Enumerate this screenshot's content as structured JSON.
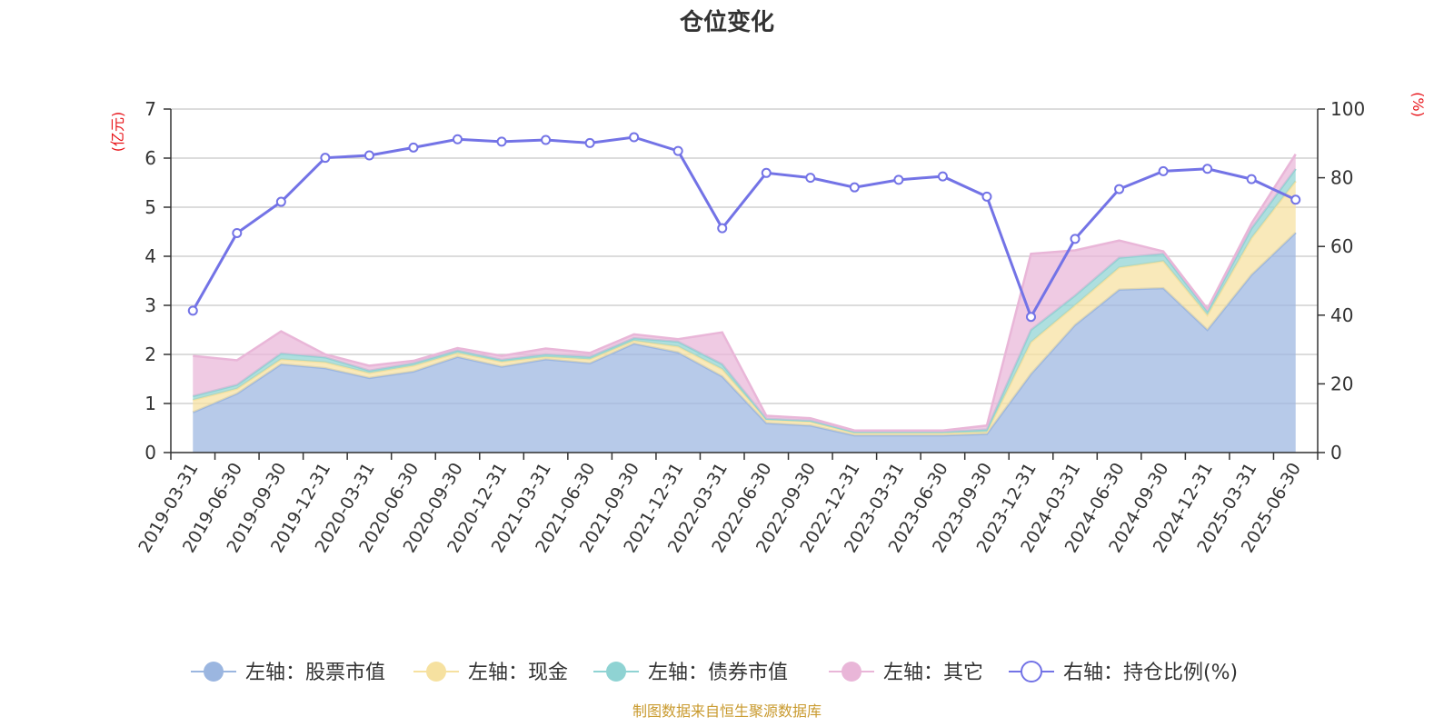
{
  "chart_data": {
    "type": "area",
    "title": "仓位变化",
    "left_axis_unit": "(亿元)",
    "right_axis_unit": "(%)",
    "ylim_left": [
      0,
      7
    ],
    "yticks_left": [
      "0",
      "1",
      "2",
      "3",
      "4",
      "5",
      "6",
      "7"
    ],
    "ylim_right": [
      0,
      100
    ],
    "yticks_right": [
      "0",
      "20",
      "40",
      "60",
      "80",
      "100"
    ],
    "grid": true,
    "legend_position": "bottom",
    "source": "制图数据来自恒生聚源数据库",
    "categories": [
      "2019-03-31",
      "2019-06-30",
      "2019-09-30",
      "2019-12-31",
      "2020-03-31",
      "2020-06-30",
      "2020-09-30",
      "2020-12-31",
      "2021-03-31",
      "2021-06-30",
      "2021-09-30",
      "2021-12-31",
      "2022-03-31",
      "2022-06-30",
      "2022-09-30",
      "2022-12-31",
      "2023-03-31",
      "2023-06-30",
      "2023-09-30",
      "2023-12-31",
      "2024-03-31",
      "2024-06-30",
      "2024-09-30",
      "2024-12-31",
      "2025-03-31",
      "2025-06-30"
    ],
    "series": [
      {
        "name": "左轴：股票市值",
        "axis": "left",
        "stack": true,
        "color": "#9bb6e0",
        "values": [
          0.82,
          1.2,
          1.8,
          1.72,
          1.52,
          1.65,
          1.95,
          1.75,
          1.9,
          1.82,
          2.22,
          2.04,
          1.55,
          0.6,
          0.55,
          0.35,
          0.35,
          0.35,
          0.38,
          1.6,
          2.6,
          3.32,
          3.35,
          2.5,
          3.62,
          4.48
        ]
      },
      {
        "name": "左轴：现金",
        "axis": "left",
        "stack": true,
        "color": "#f6e1a0",
        "values": [
          0.25,
          0.1,
          0.1,
          0.12,
          0.1,
          0.12,
          0.08,
          0.1,
          0.05,
          0.08,
          0.06,
          0.12,
          0.15,
          0.07,
          0.08,
          0.05,
          0.05,
          0.05,
          0.04,
          0.65,
          0.4,
          0.45,
          0.55,
          0.3,
          0.75,
          1.05
        ]
      },
      {
        "name": "左轴：债券市值",
        "axis": "left",
        "stack": true,
        "color": "#8fd3d3",
        "values": [
          0.08,
          0.08,
          0.12,
          0.1,
          0.05,
          0.05,
          0.05,
          0.04,
          0.05,
          0.05,
          0.05,
          0.1,
          0.1,
          0.02,
          0.02,
          0.02,
          0.02,
          0.02,
          0.05,
          0.25,
          0.2,
          0.2,
          0.15,
          0.08,
          0.2,
          0.25
        ]
      },
      {
        "name": "左轴：其它",
        "axis": "left",
        "stack": true,
        "color": "#e9b6d8",
        "values": [
          0.82,
          0.5,
          0.45,
          0.06,
          0.1,
          0.05,
          0.05,
          0.08,
          0.12,
          0.08,
          0.08,
          0.05,
          0.65,
          0.06,
          0.05,
          0.03,
          0.03,
          0.03,
          0.08,
          1.55,
          0.92,
          0.35,
          0.05,
          0.05,
          0.1,
          0.3
        ]
      },
      {
        "name": "右轴：持仓比例(%)",
        "axis": "right",
        "stack": false,
        "color": "#7373e6",
        "values": [
          41.3,
          63.9,
          73.0,
          85.8,
          86.5,
          88.8,
          91.2,
          90.5,
          91.0,
          90.1,
          91.8,
          87.8,
          65.3,
          81.4,
          80.0,
          77.2,
          79.4,
          80.4,
          74.5,
          39.5,
          62.2,
          76.7,
          81.9,
          82.6,
          79.6,
          73.6
        ]
      }
    ]
  }
}
